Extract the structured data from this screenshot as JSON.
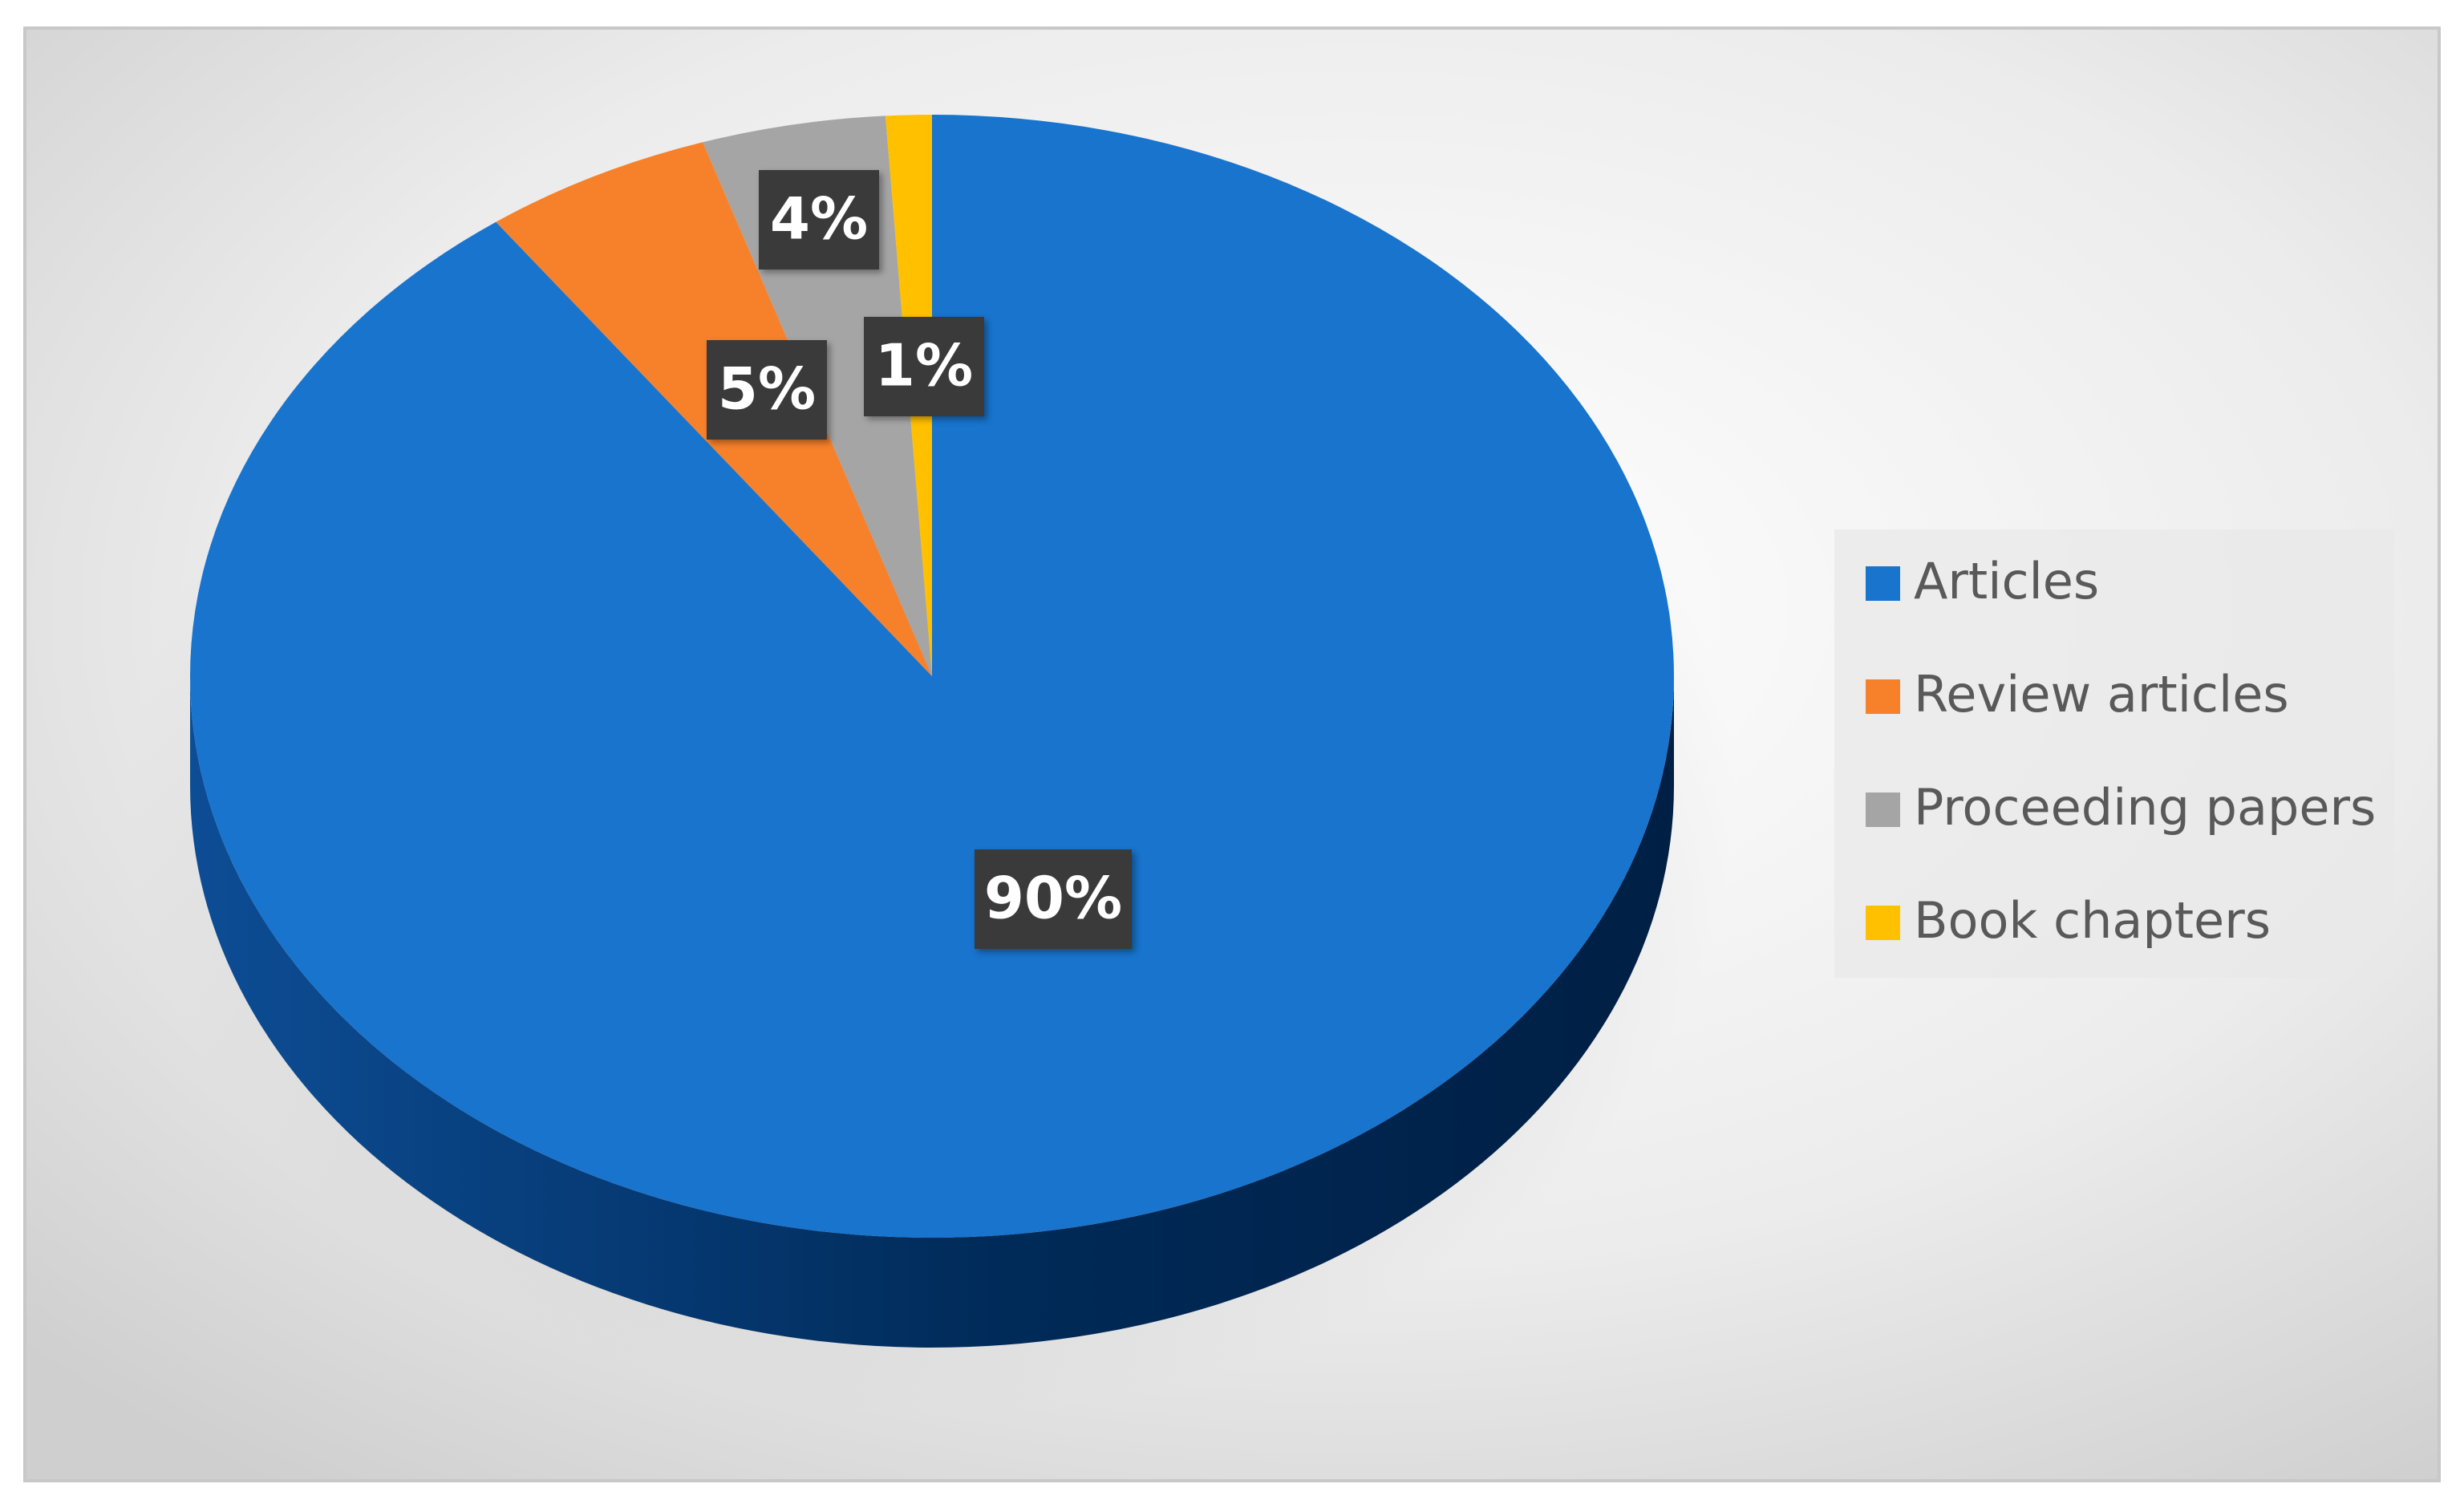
{
  "chart_data": {
    "type": "pie",
    "categories": [
      "Articles",
      "Review articles",
      "Proceeding papers",
      "Book chapters"
    ],
    "values": [
      90,
      5,
      4,
      1
    ],
    "value_labels": [
      "90%",
      "5%",
      "4%",
      "1%"
    ],
    "colors": [
      "#1874cd",
      "#f7812a",
      "#a5a5a5",
      "#ffc000"
    ],
    "legend": "right"
  }
}
